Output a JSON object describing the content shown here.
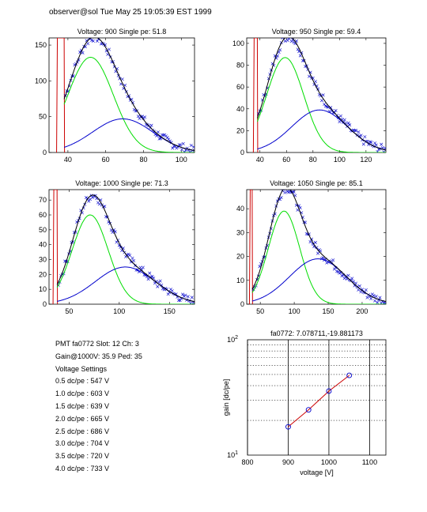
{
  "header": "observer@sol  Tue May 25 19:05:39 EST 1999",
  "info": {
    "pmt": "PMT fa0772 Slot: 12 Ch: 3",
    "gain": "Gain@1000V: 35.9 Ped: 35",
    "settings_title": "Voltage Settings",
    "settings": [
      "0.5 dc/pe : 547 V",
      "1.0 dc/pe : 603 V",
      "1.5 dc/pe : 639 V",
      "2.0 dc/pe : 665 V",
      "2.5 dc/pe : 686 V",
      "3.0 dc/pe : 704 V",
      "3.5 dc/pe : 720 V",
      "4.0 dc/pe : 733 V"
    ]
  },
  "colors": {
    "fit_total": "#000000",
    "single_pe": "#00dd00",
    "double_pe": "#0000cc",
    "data": "#0000cc",
    "pedestal": "#cc0000",
    "gain_line": "#cc0000",
    "gain_marker": "#0000cc"
  },
  "chart_data": [
    {
      "type": "scatter",
      "title": "Voltage: 900 Single pe: 51.8",
      "xlim": [
        30,
        107
      ],
      "ylim": [
        0,
        160
      ],
      "xticks": [
        40,
        60,
        80,
        100
      ],
      "yticks": [
        0,
        50,
        100,
        150
      ],
      "pedestal": [
        34,
        38
      ],
      "green": {
        "amp": 133,
        "mu": 52,
        "sigma": 12
      },
      "blue": {
        "amp": 47,
        "mu": 69,
        "sigma": 16
      }
    },
    {
      "type": "scatter",
      "title": "Voltage: 950 Single pe: 59.4",
      "xlim": [
        30,
        135
      ],
      "ylim": [
        0,
        105
      ],
      "xticks": [
        40,
        60,
        80,
        100,
        120
      ],
      "yticks": [
        0,
        20,
        40,
        60,
        80,
        100
      ],
      "pedestal": [
        35,
        38
      ],
      "green": {
        "amp": 87,
        "mu": 59,
        "sigma": 14
      },
      "blue": {
        "amp": 39,
        "mu": 85,
        "sigma": 21
      }
    },
    {
      "type": "scatter",
      "title": "Voltage: 1000 Single pe: 71.3",
      "xlim": [
        30,
        175
      ],
      "ylim": [
        0,
        77
      ],
      "xticks": [
        50,
        100,
        150
      ],
      "yticks": [
        0,
        10,
        20,
        30,
        40,
        50,
        60,
        70
      ],
      "pedestal": [
        34,
        38
      ],
      "green": {
        "amp": 60,
        "mu": 71,
        "sigma": 18
      },
      "blue": {
        "amp": 25,
        "mu": 106,
        "sigma": 30
      }
    },
    {
      "type": "scatter",
      "title": "Voltage: 1050 Single pe: 85.1",
      "xlim": [
        30,
        235
      ],
      "ylim": [
        0,
        48
      ],
      "xticks": [
        50,
        100,
        150,
        200
      ],
      "yticks": [
        0,
        10,
        20,
        30,
        40
      ],
      "pedestal": [
        34,
        38
      ],
      "green": {
        "amp": 39,
        "mu": 85,
        "sigma": 23
      },
      "blue": {
        "amp": 19,
        "mu": 135,
        "sigma": 42
      }
    },
    {
      "type": "line",
      "title": "fa0772: 7.078711,-19.881173",
      "xlabel": "voltage [V]",
      "ylabel": "gain [dc/pe]",
      "xlim": [
        800,
        1140
      ],
      "ylim": [
        10,
        100
      ],
      "yscale": "log",
      "xticks": [
        800,
        900,
        1000,
        1100
      ],
      "yticklabels": [
        "10",
        "10"
      ],
      "ytick_exponents": [
        "1",
        "2"
      ],
      "grid": "dotted",
      "x": [
        900,
        950,
        1000,
        1050
      ],
      "y": [
        17.6,
        24.7,
        35.9,
        49.1
      ]
    }
  ]
}
